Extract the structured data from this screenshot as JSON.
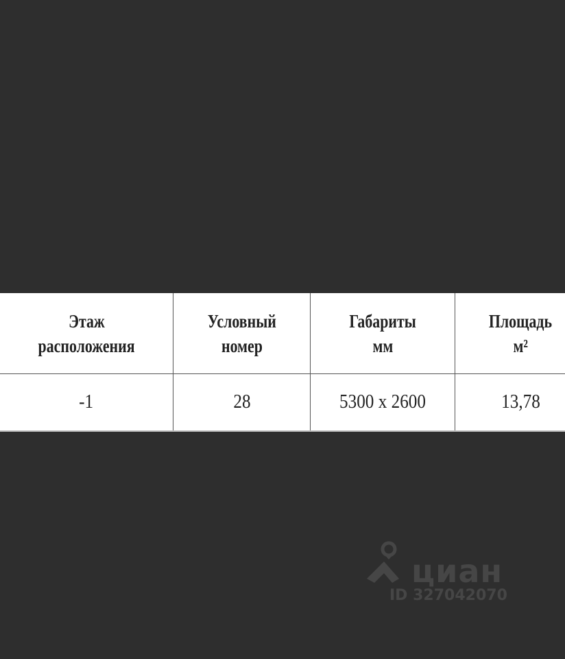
{
  "table": {
    "headers": [
      [
        "Этаж",
        "расположения"
      ],
      [
        "Условный",
        "номер"
      ],
      [
        "Габариты",
        "мм"
      ],
      [
        "Площадь",
        "м²"
      ]
    ],
    "rows": [
      [
        "-1",
        "28",
        "5300 x 2600",
        "13,78"
      ]
    ]
  },
  "watermark": {
    "brand": "циан",
    "id_text": "ID 327042070",
    "color": "#464646"
  }
}
